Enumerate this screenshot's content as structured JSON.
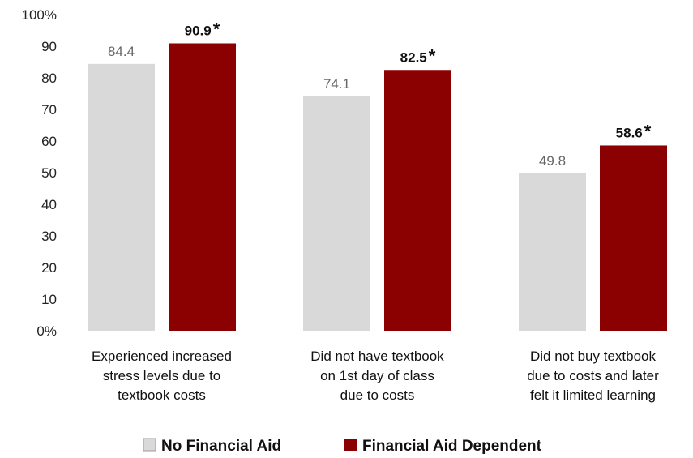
{
  "chart_data": {
    "type": "bar",
    "categories": [
      [
        "Experienced increased",
        "stress levels due to",
        "textbook costs"
      ],
      [
        "Did not have textbook",
        "on 1st day of class",
        "due to costs"
      ],
      [
        "Did not buy textbook",
        "due to costs and later",
        "felt it limited learning"
      ]
    ],
    "series": [
      {
        "name": "No Financial Aid",
        "values": [
          84.4,
          74.1,
          49.8
        ],
        "labels": [
          "84.4",
          "74.1",
          "49.8"
        ],
        "color": "#d9d9d9"
      },
      {
        "name": "Financial Aid Dependent",
        "values": [
          90.9,
          82.5,
          58.6
        ],
        "labels": [
          "90.9",
          "82.5",
          "58.6"
        ],
        "color": "#8b0000"
      }
    ],
    "significance_marker": "*",
    "y_ticks": [
      "0%",
      "10",
      "20",
      "30",
      "40",
      "50",
      "60",
      "70",
      "80",
      "90",
      "100%"
    ],
    "ylim": [
      0,
      100
    ],
    "grid": false,
    "legend_position": "bottom-center",
    "title": "",
    "xlabel": "",
    "ylabel": ""
  }
}
